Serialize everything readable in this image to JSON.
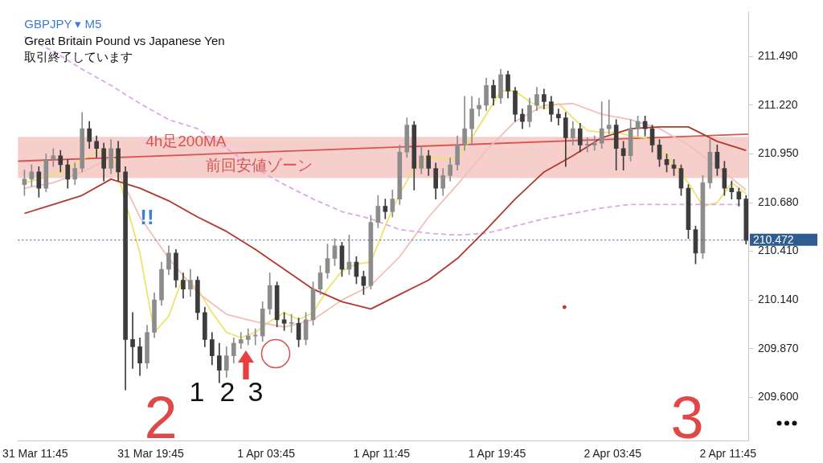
{
  "chart_data": {
    "type": "candlestick",
    "title": "GBPJPY ▾ M5",
    "subtitle": "Great Britain Pound vs Japanese Yen",
    "annotations": [
      "取引終了しています",
      "!!",
      "1",
      "2",
      "3",
      "2",
      "3"
    ],
    "colors": [
      "#8c8c8c",
      "#8c8c8c",
      "#3c3c3c",
      "#8c8c8c",
      "#8c8c8c",
      "#3c3c3c",
      "#3c3c3c",
      "#8c8c8c",
      "#8c8c8c",
      "#3c3c3c",
      "#3c3c3c",
      "#3c3c3c",
      "#8c8c8c",
      "#3c3c3c",
      "#3c3c3c",
      "#3c3c3c",
      "#3c3c3c",
      "#8c8c8c",
      "#8c8c8c",
      "#8c8c8c",
      "#8c8c8c",
      "#3c3c3c",
      "#3c3c3c",
      "#8c8c8c",
      "#3c3c3c",
      "#3c3c3c",
      "#3c3c3c",
      "#3c3c3c",
      "#8c8c8c",
      "#8c8c8c",
      "#8c8c8c",
      "#8c8c8c",
      "#8c8c8c",
      "#8c8c8c",
      "#8c8c8c",
      "#3c3c3c",
      "#3c3c3c",
      "#8c8c8c",
      "#3c3c3c",
      "#8c8c8c",
      "#8c8c8c",
      "#8c8c8c",
      "#8c8c8c",
      "#8c8c8c",
      "#3c3c3c",
      "#8c8c8c",
      "#3c3c3c",
      "#3c3c3c",
      "#8c8c8c",
      "#8c8c8c",
      "#3c3c3c",
      "#8c8c8c",
      "#8c8c8c",
      "#8c8c8c",
      "#3c3c3c",
      "#8c8c8c",
      "#3c3c3c",
      "#3c3c3c",
      "#8c8c8c",
      "#8c8c8c",
      "#8c8c8c",
      "#8c8c8c",
      "#8c8c8c",
      "#8c8c8c",
      "#8c8c8c",
      "#3c3c3c",
      "#8c8c8c",
      "#3c3c3c",
      "#3c3c3c",
      "#3c3c3c",
      "#8c8c8c",
      "#8c8c8c",
      "#3c3c3c",
      "#3c3c3c",
      "#3c3c3c",
      "#3c3c3c",
      "#8c8c8c",
      "#3c3c3c",
      "#8c8c8c",
      "#8c8c8c",
      "#8c8c8c",
      "#8c8c8c",
      "#3c3c3c",
      "#3c3c3c",
      "#8c8c8c",
      "#8c8c8c",
      "#3c3c3c",
      "#3c3c3c",
      "#3c3c3c",
      "#3c3c3c",
      "#3c3c3c",
      "#3c3c3c",
      "#3c3c3c",
      "#3c3c3c",
      "#8c8c8c",
      "#8c8c8c",
      "#3c3c3c",
      "#3c3c3c",
      "#3c3c3c",
      "#3c3c3c",
      "#3c3c3c"
    ],
    "x": [
      "--03-31T11:00",
      "--03-31T11:30",
      "--03-31T12:00",
      "--03-31T12:30",
      "--03-31T13:00",
      "--03-31T13:30",
      "--03-31T14:00",
      "--03-31T14:30",
      "--03-31T15:00",
      "--03-31T15:30",
      "--03-31T16:00",
      "--03-31T16:30",
      "--03-31T17:00",
      "--03-31T17:30",
      "--03-31T18:00",
      "--03-31T18:30",
      "--03-31T19:00",
      "--03-31T19:30",
      "--03-31T20:00",
      "--03-31T20:30",
      "--03-31T21:00",
      "--03-31T21:30",
      "--03-31T22:00",
      "--03-31T22:30",
      "--03-31T23:00",
      "--03-31T23:30",
      "--04-01T00:00",
      "--04-01T00:30",
      "--04-01T01:00",
      "--04-01T01:30",
      "--04-01T02:00",
      "--04-01T02:30",
      "--04-01T03:00",
      "--04-01T03:30",
      "--04-01T04:00",
      "--04-01T04:30",
      "--04-01T05:00",
      "--04-01T05:30",
      "--04-01T06:00",
      "--04-01T06:30",
      "--04-01T07:00",
      "--04-01T07:30",
      "--04-01T08:00",
      "--04-01T08:30",
      "--04-01T09:00",
      "--04-01T09:30",
      "--04-01T10:00",
      "--04-01T10:30",
      "--04-01T11:00",
      "--04-01T11:30",
      "--04-01T12:00",
      "--04-01T12:30",
      "--04-01T13:00",
      "--04-01T13:30",
      "--04-01T14:00",
      "--04-01T14:30",
      "--04-01T15:00",
      "--04-01T15:30",
      "--04-01T16:00",
      "--04-01T16:30",
      "--04-01T17:00",
      "--04-01T17:30",
      "--04-01T18:00",
      "--04-01T18:30",
      "--04-01T19:00",
      "--04-01T19:30",
      "--04-01T20:00",
      "--04-01T20:30",
      "--04-01T21:00",
      "--04-01T21:30",
      "--04-01T22:00",
      "--04-01T22:30",
      "--04-01T23:00",
      "--04-01T23:30",
      "--04-02T00:00",
      "--04-02T00:30",
      "--04-02T01:00",
      "--04-02T01:30",
      "--04-02T02:00",
      "--04-02T02:30",
      "--04-02T03:00",
      "--04-02T03:30",
      "--04-02T04:00",
      "--04-02T04:30",
      "--04-02T05:00",
      "--04-02T05:30",
      "--04-02T06:00",
      "--04-02T06:30",
      "--04-02T07:00",
      "--04-02T07:30",
      "--04-02T08:00",
      "--04-02T08:30",
      "--04-02T09:00",
      "--04-02T09:30",
      "--04-02T10:00",
      "--04-02T10:30",
      "--04-02T11:00",
      "--04-02T11:30",
      "--04-02T12:00",
      "--04-02T12:30",
      "--04-02T13:00"
    ],
    "ohlc": [
      [
        210.78,
        210.86,
        210.72,
        210.81
      ],
      [
        210.81,
        210.89,
        210.77,
        210.85
      ],
      [
        210.85,
        210.88,
        210.71,
        210.76
      ],
      [
        210.76,
        210.95,
        210.74,
        210.92
      ],
      [
        210.92,
        210.98,
        210.88,
        210.94
      ],
      [
        210.94,
        210.97,
        210.85,
        210.89
      ],
      [
        210.89,
        210.92,
        210.76,
        210.81
      ],
      [
        210.81,
        210.9,
        210.78,
        210.87
      ],
      [
        210.87,
        211.18,
        210.85,
        211.09
      ],
      [
        211.09,
        211.13,
        210.98,
        211.02
      ],
      [
        211.02,
        211.05,
        210.93,
        210.98
      ],
      [
        210.98,
        211.01,
        210.8,
        210.87
      ],
      [
        210.87,
        211.03,
        210.84,
        210.98
      ],
      [
        210.98,
        211.02,
        210.8,
        210.85
      ],
      [
        210.85,
        210.88,
        209.64,
        209.92
      ],
      [
        209.92,
        210.07,
        209.76,
        209.88
      ],
      [
        209.88,
        209.93,
        209.72,
        209.79
      ],
      [
        209.79,
        210.0,
        209.76,
        209.96
      ],
      [
        209.96,
        210.18,
        209.93,
        210.14
      ],
      [
        210.14,
        210.35,
        210.11,
        210.31
      ],
      [
        210.31,
        210.44,
        210.28,
        210.4
      ],
      [
        210.4,
        210.42,
        210.21,
        210.25
      ],
      [
        210.25,
        210.29,
        210.15,
        210.2
      ],
      [
        210.2,
        210.31,
        210.16,
        210.25
      ],
      [
        210.25,
        210.27,
        210.03,
        210.07
      ],
      [
        210.07,
        210.1,
        209.88,
        209.92
      ],
      [
        209.92,
        209.96,
        209.78,
        209.83
      ],
      [
        209.83,
        209.9,
        209.68,
        209.75
      ],
      [
        209.75,
        209.88,
        209.71,
        209.83
      ],
      [
        209.83,
        209.93,
        209.79,
        209.9
      ],
      [
        209.9,
        209.96,
        209.87,
        209.92
      ],
      [
        209.92,
        209.98,
        209.89,
        209.94
      ],
      [
        209.94,
        209.98,
        209.89,
        209.94
      ],
      [
        209.94,
        210.13,
        209.91,
        210.09
      ],
      [
        210.09,
        210.29,
        210.06,
        210.22
      ],
      [
        210.22,
        210.24,
        209.99,
        210.03
      ],
      [
        210.03,
        210.07,
        209.97,
        210.01
      ],
      [
        210.01,
        210.06,
        209.96,
        210.01
      ],
      [
        210.01,
        210.04,
        209.88,
        209.92
      ],
      [
        209.92,
        210.07,
        209.89,
        210.03
      ],
      [
        210.03,
        210.24,
        210.0,
        210.2
      ],
      [
        210.2,
        210.33,
        210.17,
        210.29
      ],
      [
        210.29,
        210.45,
        210.26,
        210.37
      ],
      [
        210.37,
        210.48,
        210.33,
        210.44
      ],
      [
        210.44,
        210.46,
        210.27,
        210.31
      ],
      [
        210.31,
        210.5,
        210.28,
        210.35
      ],
      [
        210.35,
        210.38,
        210.23,
        210.27
      ],
      [
        210.27,
        210.3,
        210.17,
        210.22
      ],
      [
        210.22,
        210.61,
        210.2,
        210.57
      ],
      [
        210.57,
        210.72,
        210.54,
        210.66
      ],
      [
        210.66,
        210.7,
        210.59,
        210.63
      ],
      [
        210.63,
        210.75,
        210.6,
        210.7
      ],
      [
        210.7,
        211.0,
        210.67,
        210.96
      ],
      [
        210.96,
        211.15,
        210.93,
        211.11
      ],
      [
        211.11,
        211.13,
        210.75,
        210.87
      ],
      [
        210.87,
        210.99,
        210.84,
        210.94
      ],
      [
        210.94,
        210.97,
        210.83,
        210.87
      ],
      [
        210.87,
        210.9,
        210.7,
        210.76
      ],
      [
        210.76,
        210.87,
        210.72,
        210.83
      ],
      [
        210.83,
        210.93,
        210.8,
        210.89
      ],
      [
        210.89,
        211.05,
        210.86,
        211.0
      ],
      [
        211.0,
        211.27,
        210.97,
        211.09
      ],
      [
        211.09,
        211.27,
        211.0,
        211.2
      ],
      [
        211.2,
        211.26,
        211.16,
        211.22
      ],
      [
        211.22,
        211.37,
        211.19,
        211.33
      ],
      [
        211.33,
        211.36,
        211.22,
        211.26
      ],
      [
        211.26,
        211.42,
        211.23,
        211.39
      ],
      [
        211.39,
        211.41,
        211.26,
        211.3
      ],
      [
        211.3,
        211.32,
        211.13,
        211.17
      ],
      [
        211.17,
        211.2,
        211.09,
        211.13
      ],
      [
        211.13,
        211.26,
        211.1,
        211.22
      ],
      [
        211.22,
        211.32,
        211.19,
        211.28
      ],
      [
        211.28,
        211.31,
        211.2,
        211.24
      ],
      [
        211.24,
        211.27,
        211.13,
        211.17
      ],
      [
        211.17,
        211.2,
        211.11,
        211.15
      ],
      [
        211.15,
        211.18,
        210.88,
        211.04
      ],
      [
        211.04,
        211.13,
        211.0,
        211.09
      ],
      [
        211.09,
        211.12,
        210.96,
        211.0
      ],
      [
        211.0,
        211.04,
        210.96,
        211.0
      ],
      [
        211.0,
        211.05,
        210.97,
        211.01
      ],
      [
        211.01,
        211.24,
        210.98,
        211.09
      ],
      [
        211.09,
        211.25,
        211.06,
        211.11
      ],
      [
        211.11,
        211.14,
        210.86,
        210.98
      ],
      [
        210.98,
        211.02,
        210.86,
        210.94
      ],
      [
        210.94,
        211.14,
        210.91,
        211.09
      ],
      [
        211.09,
        211.16,
        211.05,
        211.13
      ],
      [
        211.13,
        211.16,
        211.05,
        211.09
      ],
      [
        211.09,
        211.11,
        210.96,
        211.0
      ],
      [
        211.0,
        211.03,
        210.88,
        210.92
      ],
      [
        210.92,
        210.95,
        210.85,
        210.89
      ],
      [
        210.89,
        210.92,
        210.83,
        210.87
      ],
      [
        210.87,
        210.89,
        210.72,
        210.76
      ],
      [
        210.76,
        210.78,
        210.48,
        210.53
      ],
      [
        210.53,
        210.55,
        210.34,
        210.4
      ],
      [
        210.4,
        210.83,
        210.37,
        210.79
      ],
      [
        210.79,
        211.05,
        210.76,
        210.96
      ],
      [
        210.96,
        211.0,
        210.83,
        210.87
      ],
      [
        210.87,
        210.91,
        210.72,
        210.76
      ],
      [
        210.76,
        210.8,
        210.7,
        210.74
      ],
      [
        210.74,
        210.76,
        210.66,
        210.7
      ],
      [
        210.7,
        210.72,
        210.45,
        210.47
      ]
    ],
    "series": [
      {
        "type": "line",
        "color": "#b5362c",
        "x": [
          "--03-31T11:00",
          "--03-31T13:00",
          "--03-31T15:00",
          "--03-31T17:00",
          "--03-31T19:00",
          "--03-31T21:00",
          "--03-31T23:00",
          "--04-01T01:00",
          "--04-01T03:00",
          "--04-01T05:00",
          "--04-01T07:00",
          "--04-01T09:00",
          "--04-01T11:00",
          "--04-01T13:00",
          "--04-01T15:00",
          "--04-01T17:00",
          "--04-01T19:00",
          "--04-01T21:00",
          "--04-01T23:00",
          "--04-02T01:00",
          "--04-02T03:00",
          "--04-02T05:00",
          "--04-02T07:00",
          "--04-02T09:00",
          "--04-02T11:00",
          "--04-02T13:00"
        ],
        "values": [
          210.62,
          210.67,
          210.72,
          210.81,
          210.76,
          210.69,
          210.6,
          210.52,
          210.42,
          210.31,
          210.2,
          210.13,
          210.09,
          210.17,
          210.25,
          210.37,
          210.53,
          210.7,
          210.85,
          210.94,
          211.04,
          211.09,
          211.1,
          211.1,
          211.02,
          210.97
        ]
      },
      {
        "type": "line",
        "color": "#dca6e8",
        "line_style": "dashed",
        "x": [
          "--03-31T11:00",
          "--03-31T13:00",
          "--03-31T15:00",
          "--03-31T17:00",
          "--03-31T19:00",
          "--03-31T21:00",
          "--03-31T23:00",
          "--04-01T01:00",
          "--04-01T03:00",
          "--04-01T05:00",
          "--04-01T07:00",
          "--04-01T09:00",
          "--04-01T11:00",
          "--04-01T13:00",
          "--04-01T15:00",
          "--04-01T17:00",
          "--04-01T19:00",
          "--04-01T21:00",
          "--04-01T23:00",
          "--04-02T01:00",
          "--04-02T03:00",
          "--04-02T05:00",
          "--04-02T07:00",
          "--04-02T09:00",
          "--04-02T11:00",
          "--04-02T13:00"
        ],
        "values": [
          211.6,
          211.52,
          211.42,
          211.33,
          211.23,
          211.14,
          211.09,
          210.98,
          210.87,
          210.78,
          210.7,
          210.63,
          210.59,
          210.53,
          210.51,
          210.5,
          210.51,
          210.55,
          210.59,
          210.62,
          210.65,
          210.67,
          210.67,
          210.67,
          210.67,
          210.67
        ]
      },
      {
        "type": "line",
        "color": "#f1c0b8",
        "x": [
          "--03-31T11:00",
          "--03-31T13:00",
          "--03-31T15:00",
          "--03-31T17:00",
          "--03-31T19:00",
          "--03-31T21:00",
          "--03-31T23:00",
          "--04-01T01:00",
          "--04-01T03:00",
          "--04-01T05:00",
          "--04-01T07:00",
          "--04-01T09:00",
          "--04-01T11:00",
          "--04-01T13:00",
          "--04-01T15:00",
          "--04-01T17:00",
          "--04-01T19:00",
          "--04-01T21:00",
          "--04-01T23:00",
          "--04-02T01:00",
          "--04-02T03:00",
          "--04-02T05:00",
          "--04-02T07:00",
          "--04-02T09:00",
          "--04-02T11:00",
          "--04-02T13:00"
        ],
        "values": [
          210.76,
          210.79,
          210.85,
          210.93,
          210.6,
          210.37,
          210.18,
          210.06,
          210.02,
          209.99,
          210.03,
          210.14,
          210.22,
          210.38,
          210.6,
          210.78,
          210.97,
          211.13,
          211.22,
          211.23,
          211.17,
          211.14,
          211.09,
          211.0,
          210.88,
          210.75
        ]
      },
      {
        "type": "line",
        "color": "#eee36a",
        "x": [
          "--03-31T11:00",
          "--03-31T12:00",
          "--03-31T13:00",
          "--03-31T14:00",
          "--03-31T15:00",
          "--03-31T16:00",
          "--03-31T17:00",
          "--03-31T18:00",
          "--03-31T19:00",
          "--03-31T20:00",
          "--03-31T21:00",
          "--03-31T22:00",
          "--03-31T23:00",
          "--04-01T00:00",
          "--04-01T01:00",
          "--04-01T02:00",
          "--04-01T03:00",
          "--04-01T04:00",
          "--04-01T05:00",
          "--04-01T06:00",
          "--04-01T07:00",
          "--04-01T08:00",
          "--04-01T09:00",
          "--04-01T10:00",
          "--04-01T11:00",
          "--04-01T12:00",
          "--04-01T13:00",
          "--04-01T14:00",
          "--04-01T15:00",
          "--04-01T16:00",
          "--04-01T17:00",
          "--04-01T18:00",
          "--04-01T19:00",
          "--04-01T20:00",
          "--04-01T21:00",
          "--04-01T22:00",
          "--04-01T23:00",
          "--04-02T00:00",
          "--04-02T01:00",
          "--04-02T02:00",
          "--04-02T03:00",
          "--04-02T04:00",
          "--04-02T05:00",
          "--04-02T06:00",
          "--04-02T07:00",
          "--04-02T08:00",
          "--04-02T09:00",
          "--04-02T10:00",
          "--04-02T11:00",
          "--04-02T12:00",
          "--04-02T13:00"
        ],
        "values": [
          210.79,
          210.81,
          210.83,
          210.87,
          210.92,
          210.96,
          210.97,
          null,
          210.4,
          209.96,
          210.05,
          210.27,
          210.2,
          210.07,
          209.96,
          209.93,
          209.96,
          210.02,
          210.07,
          210.03,
          210.07,
          210.2,
          210.3,
          210.34,
          210.35,
          210.55,
          210.73,
          210.87,
          210.94,
          210.92,
          210.93,
          211.04,
          211.17,
          211.3,
          211.3,
          211.24,
          211.2,
          211.23,
          211.15,
          211.08,
          211.07,
          211.07,
          211.05,
          211.04,
          210.99,
          210.89,
          210.79,
          210.66,
          210.68,
          210.79,
          210.73
        ]
      },
      {
        "type": "line",
        "name": "4h足200MA",
        "color": "#d9534f",
        "x": [
          "--03-31T10:33",
          "--04-02T13:09"
        ],
        "values": [
          210.91,
          211.06
        ]
      },
      {
        "type": "scatter",
        "color": "#c0392b",
        "x": [
          "--04-02T00:25"
        ],
        "values": [
          210.1
        ]
      }
    ],
    "xlim": [
      "--03-31T10:33",
      "--04-02T13:09"
    ],
    "xticks": [
      {
        "value": "--03-31T11:45",
        "label": "31 Mar 11:45"
      },
      {
        "value": "--03-31T19:45",
        "label": "31 Mar 19:45"
      },
      {
        "value": "--04-01T03:45",
        "label": "1 Apr 03:45"
      },
      {
        "value": "--04-01T11:45",
        "label": "1 Apr 11:45"
      },
      {
        "value": "--04-01T19:45",
        "label": "1 Apr 19:45"
      },
      {
        "value": "--04-02T03:45",
        "label": "2 Apr 03:45"
      },
      {
        "value": "--04-02T11:45",
        "label": "2 Apr 11:45"
      }
    ],
    "ylim": [
      209.36,
      211.74
    ],
    "yticks": [
      {
        "value": 209.6,
        "label": "209.600"
      },
      {
        "value": 209.87,
        "label": "209.870"
      },
      {
        "value": 210.14,
        "label": "210.140"
      },
      {
        "value": 210.41,
        "label": "210.410"
      },
      {
        "value": 210.68,
        "label": "210.680"
      },
      {
        "value": 210.95,
        "label": "210.950"
      },
      {
        "value": 211.22,
        "label": "211.220"
      },
      {
        "value": 211.49,
        "label": "211.490"
      }
    ],
    "ref_lines": [
      {
        "axis": "y",
        "value": 210.472,
        "label": "210.472",
        "color": "#2f5d91",
        "line_style": "dotted"
      }
    ],
    "bands": [
      {
        "axis": "y",
        "from": 210.816,
        "to": 211.045,
        "label": "前回安値ゾーン",
        "color": "#f5c6c3"
      }
    ]
  }
}
